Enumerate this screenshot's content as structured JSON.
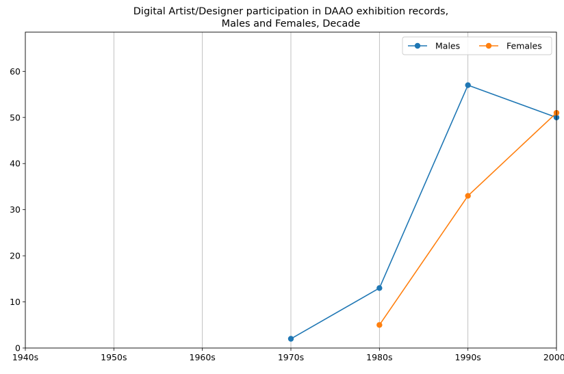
{
  "chart_data": {
    "type": "line",
    "title_lines": [
      "Digital Artist/Designer participation in DAAO exhibition records,",
      "Males and Females, Decade"
    ],
    "xlabel": "",
    "ylabel": "",
    "categories": [
      "1940s",
      "1950s",
      "1960s",
      "1970s",
      "1980s",
      "1990s",
      "2000s"
    ],
    "y_ticks": [
      0,
      10,
      20,
      30,
      40,
      50,
      60
    ],
    "ylim": [
      0,
      68.5
    ],
    "grid": "vertical",
    "legend": {
      "placement": "top-right",
      "columns": 2
    },
    "series": [
      {
        "name": "Males",
        "color": "#1f77b4",
        "marker": "circle",
        "values": [
          null,
          null,
          null,
          2,
          13,
          57,
          50
        ]
      },
      {
        "name": "Females",
        "color": "#ff7f0e",
        "marker": "circle",
        "values": [
          null,
          null,
          null,
          null,
          5,
          33,
          51
        ]
      }
    ]
  }
}
